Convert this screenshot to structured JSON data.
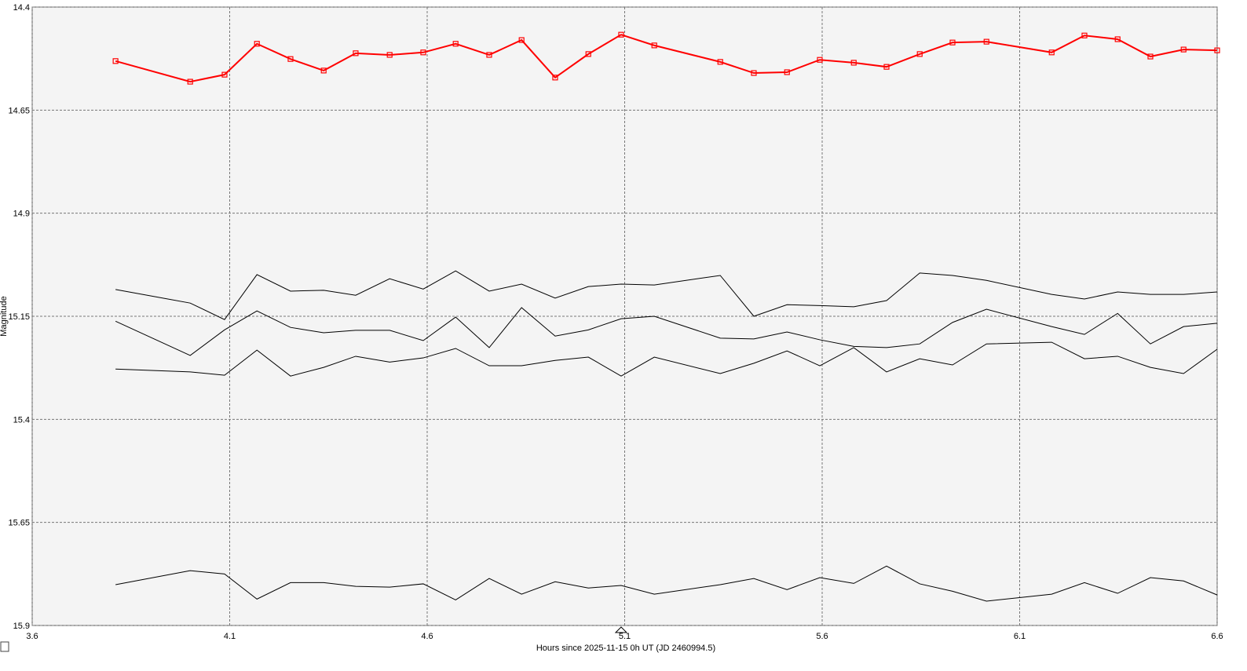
{
  "chart_data": {
    "type": "line",
    "xlabel": "Hours since 2025-11-15 0h UT (JD 2460994.5)",
    "ylabel": "Magnitude",
    "x": [
      3.811,
      4.0,
      4.087,
      4.169,
      4.254,
      4.338,
      4.419,
      4.505,
      4.59,
      4.672,
      4.757,
      4.839,
      4.924,
      5.008,
      5.091,
      5.175,
      5.342,
      5.427,
      5.511,
      5.594,
      5.68,
      5.763,
      5.847,
      5.93,
      6.016,
      6.181,
      6.264,
      6.348,
      6.431,
      6.515,
      6.6
    ],
    "series": [
      {
        "color": "#ff0000",
        "marker": "square",
        "values": [
          14.531,
          14.581,
          14.564,
          14.489,
          14.526,
          14.554,
          14.512,
          14.516,
          14.51,
          14.489,
          14.516,
          14.48,
          14.571,
          14.514,
          14.467,
          14.493,
          14.533,
          14.56,
          14.558,
          14.528,
          14.535,
          14.545,
          14.514,
          14.486,
          14.484,
          14.51,
          14.469,
          14.478,
          14.52,
          14.503,
          14.505
        ]
      },
      {
        "color": "#000000",
        "values": [
          15.085,
          15.118,
          15.158,
          15.049,
          15.089,
          15.087,
          15.099,
          15.059,
          15.084,
          15.04,
          15.089,
          15.072,
          15.106,
          15.078,
          15.072,
          15.074,
          15.051,
          15.15,
          15.122,
          15.124,
          15.127,
          15.112,
          15.045,
          15.051,
          15.063,
          15.097,
          15.108,
          15.091,
          15.097,
          15.097,
          15.091
        ]
      },
      {
        "color": "#000000",
        "values": [
          15.162,
          15.245,
          15.183,
          15.137,
          15.177,
          15.19,
          15.184,
          15.184,
          15.209,
          15.152,
          15.226,
          15.129,
          15.198,
          15.183,
          15.156,
          15.15,
          15.203,
          15.205,
          15.188,
          15.207,
          15.223,
          15.226,
          15.217,
          15.165,
          15.133,
          15.175,
          15.194,
          15.143,
          15.217,
          15.175,
          15.167
        ]
      },
      {
        "color": "#000000",
        "values": [
          15.278,
          15.285,
          15.293,
          15.232,
          15.295,
          15.274,
          15.247,
          15.261,
          15.251,
          15.228,
          15.27,
          15.27,
          15.257,
          15.249,
          15.295,
          15.249,
          15.289,
          15.264,
          15.234,
          15.27,
          15.226,
          15.285,
          15.253,
          15.268,
          15.217,
          15.213,
          15.253,
          15.247,
          15.274,
          15.289,
          15.23
        ]
      },
      {
        "color": "#000000",
        "values": [
          15.801,
          15.767,
          15.775,
          15.836,
          15.796,
          15.796,
          15.805,
          15.807,
          15.799,
          15.838,
          15.786,
          15.824,
          15.794,
          15.809,
          15.803,
          15.824,
          15.801,
          15.786,
          15.813,
          15.784,
          15.798,
          15.756,
          15.799,
          15.817,
          15.841,
          15.824,
          15.796,
          15.822,
          15.784,
          15.792,
          15.826
        ]
      }
    ],
    "xlim": [
      3.6,
      6.6
    ],
    "xticks": [
      3.6,
      4.1,
      4.6,
      5.1,
      5.6,
      6.1,
      6.6
    ],
    "ylim": [
      14.4,
      15.9
    ],
    "yticks": [
      14.4,
      14.65,
      14.9,
      15.15,
      15.4,
      15.65,
      15.9
    ],
    "invert_y": true,
    "grid": true
  }
}
